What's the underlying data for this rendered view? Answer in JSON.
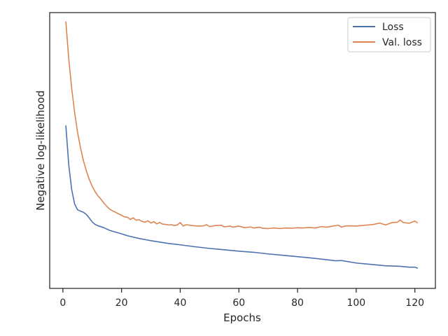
{
  "chart_data": {
    "type": "line",
    "title": "",
    "xlabel": "Epochs",
    "ylabel": "Negative log-likelihood",
    "xlim": [
      -4.5,
      127
    ],
    "ylim": [
      0,
      1
    ],
    "xticks": [
      0,
      20,
      40,
      60,
      80,
      100,
      120
    ],
    "y_tick_labels": false,
    "grid": false,
    "legend_position": "top-right",
    "series": [
      {
        "name": "Loss",
        "color": "#4c72b0",
        "points": [
          [
            1,
            0.591
          ],
          [
            2,
            0.448
          ],
          [
            3,
            0.358
          ],
          [
            4,
            0.306
          ],
          [
            5,
            0.285
          ],
          [
            6,
            0.28
          ],
          [
            7,
            0.276
          ],
          [
            8,
            0.268
          ],
          [
            9,
            0.255
          ],
          [
            10,
            0.241
          ],
          [
            11,
            0.232
          ],
          [
            12,
            0.227
          ],
          [
            14,
            0.22
          ],
          [
            16,
            0.21
          ],
          [
            18,
            0.204
          ],
          [
            20,
            0.198
          ],
          [
            22,
            0.191
          ],
          [
            24,
            0.186
          ],
          [
            26,
            0.181
          ],
          [
            28,
            0.177
          ],
          [
            30,
            0.173
          ],
          [
            33,
            0.168
          ],
          [
            36,
            0.163
          ],
          [
            40,
            0.158
          ],
          [
            45,
            0.151
          ],
          [
            50,
            0.145
          ],
          [
            55,
            0.14
          ],
          [
            60,
            0.135
          ],
          [
            65,
            0.131
          ],
          [
            70,
            0.125
          ],
          [
            75,
            0.12
          ],
          [
            80,
            0.115
          ],
          [
            85,
            0.11
          ],
          [
            90,
            0.104
          ],
          [
            93,
            0.1
          ],
          [
            95,
            0.101
          ],
          [
            100,
            0.092
          ],
          [
            105,
            0.087
          ],
          [
            110,
            0.082
          ],
          [
            115,
            0.08
          ],
          [
            118,
            0.077
          ],
          [
            120,
            0.077
          ],
          [
            121,
            0.073
          ]
        ]
      },
      {
        "name": "Val. loss",
        "color": "#dd8452",
        "points": [
          [
            1,
            0.968
          ],
          [
            2,
            0.831
          ],
          [
            3,
            0.725
          ],
          [
            4,
            0.638
          ],
          [
            5,
            0.566
          ],
          [
            6,
            0.51
          ],
          [
            7,
            0.463
          ],
          [
            8,
            0.426
          ],
          [
            9,
            0.395
          ],
          [
            10,
            0.37
          ],
          [
            11,
            0.35
          ],
          [
            12,
            0.335
          ],
          [
            13,
            0.323
          ],
          [
            14,
            0.309
          ],
          [
            15,
            0.297
          ],
          [
            16,
            0.287
          ],
          [
            17,
            0.281
          ],
          [
            18,
            0.276
          ],
          [
            19,
            0.27
          ],
          [
            20,
            0.265
          ],
          [
            21,
            0.259
          ],
          [
            22,
            0.258
          ],
          [
            23,
            0.25
          ],
          [
            24,
            0.256
          ],
          [
            25,
            0.247
          ],
          [
            26,
            0.249
          ],
          [
            27,
            0.243
          ],
          [
            28,
            0.24
          ],
          [
            29,
            0.245
          ],
          [
            30,
            0.237
          ],
          [
            31,
            0.242
          ],
          [
            32,
            0.234
          ],
          [
            33,
            0.239
          ],
          [
            34,
            0.233
          ],
          [
            35,
            0.232
          ],
          [
            36,
            0.23
          ],
          [
            37,
            0.231
          ],
          [
            38,
            0.228
          ],
          [
            39,
            0.23
          ],
          [
            40,
            0.239
          ],
          [
            41,
            0.226
          ],
          [
            42,
            0.231
          ],
          [
            44,
            0.228
          ],
          [
            46,
            0.226
          ],
          [
            48,
            0.227
          ],
          [
            49,
            0.231
          ],
          [
            50,
            0.224
          ],
          [
            52,
            0.228
          ],
          [
            54,
            0.229
          ],
          [
            55,
            0.223
          ],
          [
            57,
            0.226
          ],
          [
            58,
            0.222
          ],
          [
            60,
            0.226
          ],
          [
            62,
            0.22
          ],
          [
            64,
            0.223
          ],
          [
            65,
            0.219
          ],
          [
            67,
            0.222
          ],
          [
            68,
            0.218
          ],
          [
            70,
            0.217
          ],
          [
            72,
            0.219
          ],
          [
            74,
            0.217
          ],
          [
            76,
            0.219
          ],
          [
            78,
            0.218
          ],
          [
            80,
            0.22
          ],
          [
            82,
            0.219
          ],
          [
            84,
            0.221
          ],
          [
            86,
            0.219
          ],
          [
            88,
            0.224
          ],
          [
            90,
            0.222
          ],
          [
            92,
            0.226
          ],
          [
            94,
            0.229
          ],
          [
            95,
            0.222
          ],
          [
            96,
            0.226
          ],
          [
            98,
            0.227
          ],
          [
            100,
            0.226
          ],
          [
            102,
            0.228
          ],
          [
            104,
            0.23
          ],
          [
            106,
            0.232
          ],
          [
            108,
            0.237
          ],
          [
            110,
            0.23
          ],
          [
            112,
            0.238
          ],
          [
            114,
            0.24
          ],
          [
            115,
            0.248
          ],
          [
            116,
            0.239
          ],
          [
            118,
            0.236
          ],
          [
            120,
            0.244
          ],
          [
            121,
            0.237
          ]
        ]
      }
    ]
  }
}
